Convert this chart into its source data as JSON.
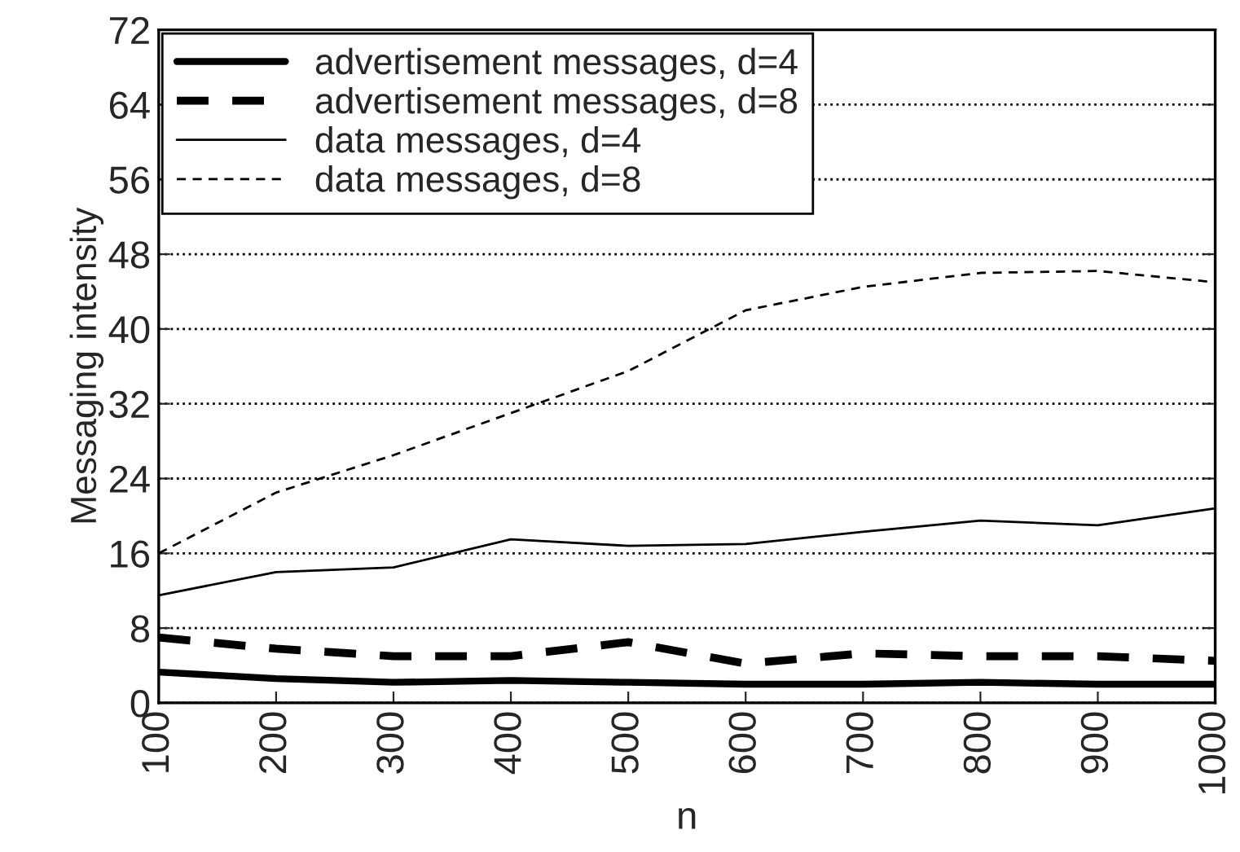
{
  "chart_data": {
    "type": "line",
    "xlabel": "n",
    "ylabel": "Messaging intensity",
    "x": [
      100,
      200,
      300,
      400,
      500,
      600,
      700,
      800,
      900,
      1000
    ],
    "series": [
      {
        "name": "advertisement messages, d=4",
        "color": "#000000",
        "line_style": "solid",
        "values": [
          3.3,
          2.6,
          2.2,
          2.4,
          2.2,
          2.0,
          2.0,
          2.2,
          2.0,
          2.0
        ]
      },
      {
        "name": "advertisement messages, d=8",
        "color": "#000000",
        "line_style": "dashed",
        "values": [
          7.0,
          5.8,
          5.0,
          5.0,
          6.5,
          4.2,
          5.3,
          5.0,
          5.0,
          4.5
        ]
      },
      {
        "name": "data messages, d=4",
        "color": "#000000",
        "line_style": "solid",
        "values": [
          11.5,
          14.0,
          14.5,
          17.5,
          16.8,
          17.0,
          18.3,
          19.5,
          19.0,
          20.8
        ]
      },
      {
        "name": "data messages, d=8",
        "color": "#000000",
        "line_style": "dashed",
        "values": [
          16.0,
          22.5,
          26.5,
          31.0,
          35.5,
          42.0,
          44.5,
          46.0,
          46.2,
          45.0
        ]
      }
    ],
    "xlim": [
      100,
      1000
    ],
    "ylim": [
      0,
      72
    ],
    "xticks": [
      100,
      200,
      300,
      400,
      500,
      600,
      700,
      800,
      900,
      1000
    ],
    "yticks": [
      0,
      8,
      16,
      24,
      32,
      40,
      48,
      56,
      64,
      72
    ],
    "grid": "y",
    "legend": "top left"
  }
}
